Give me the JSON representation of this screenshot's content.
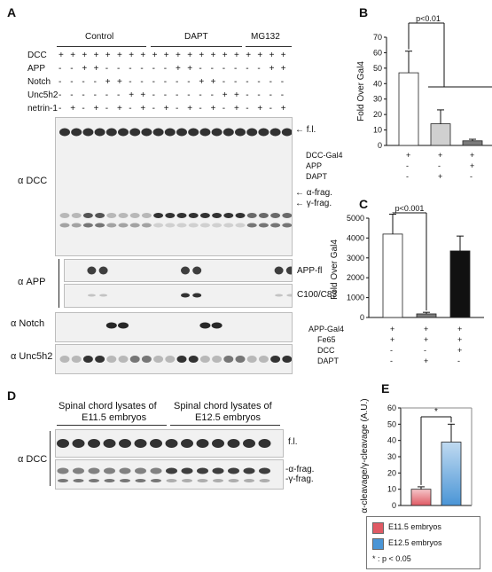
{
  "panels": {
    "A": {
      "label": "A",
      "groups": [
        "Control",
        "DAPT",
        "MG132"
      ],
      "rows": [
        {
          "name": "DCC",
          "signs": "++++++++++++++++++++++++++"
        },
        {
          "name": "APP",
          "signs": "--++------++------++"
        },
        {
          "name": "Notch",
          "signs": "----++------++------"
        },
        {
          "name": "Unc5h2",
          "signs": "------++------++----"
        },
        {
          "name": "netrin-1",
          "signs": "-+-+-+-+-+-+-+-+-+-+"
        }
      ],
      "antibodies": [
        "α DCC",
        "α APP",
        "α Notch",
        "α Unc5h2"
      ],
      "band_labels": {
        "fl": "f.l.",
        "alpha": "α-frag.",
        "gamma": "γ-frag.",
        "app_fl": "APP-fl",
        "c100": "C100/C83"
      }
    },
    "B": {
      "label": "B",
      "pvalue": "p<0.01",
      "row_labels": [
        "DCC-Gal4",
        "APP",
        "DAPT"
      ],
      "row_signs": [
        [
          "+",
          "+",
          "+"
        ],
        [
          "-",
          "-",
          "+"
        ],
        [
          "-",
          "+",
          "-"
        ]
      ]
    },
    "C": {
      "label": "C",
      "pvalue": "p<0.001",
      "row_labels": [
        "APP-Gal4",
        "Fe65",
        "DCC",
        "DAPT"
      ],
      "row_signs": [
        [
          "+",
          "+",
          "+"
        ],
        [
          "+",
          "+",
          "+"
        ],
        [
          "-",
          "-",
          "+"
        ],
        [
          "-",
          "+",
          "-"
        ]
      ]
    },
    "D": {
      "label": "D",
      "header_left_1": "Spinal chord lysates of",
      "header_left_2": "E11.5 embryos",
      "header_right_1": "Spinal chord lysates of",
      "header_right_2": "E12.5 embryos",
      "antibody": "α DCC",
      "band_fl": "f.l.",
      "band_alpha": "α-frag.",
      "band_gamma": "γ-frag."
    },
    "E": {
      "label": "E",
      "star": "*",
      "legend": [
        "E11.5 embryos",
        "E12.5 embryos"
      ],
      "footnote": "* : p < 0.05"
    }
  },
  "colors": {
    "white_bar": "#ffffff",
    "light_grey_bar": "#d0d0d0",
    "dark_grey_bar": "#7a7a7a",
    "black_bar": "#111111",
    "e115": "#e05a64",
    "e125": "#4a95d6"
  },
  "chart_data": [
    {
      "type": "bar",
      "panel": "B",
      "categories": [
        "DCC-Gal4",
        "DCC-Gal4 + DAPT",
        "DCC-Gal4 + APP"
      ],
      "values": [
        47,
        14,
        3
      ],
      "errors": [
        14,
        9,
        1
      ],
      "ylabel": "Fold Over Gal4",
      "ylim": [
        0,
        70
      ],
      "yticks": [
        0,
        10,
        20,
        30,
        40,
        50,
        60,
        70
      ]
    },
    {
      "type": "bar",
      "panel": "C",
      "categories": [
        "APP-Gal4 + Fe65",
        "APP-Gal4 + Fe65 + DAPT",
        "APP-Gal4 + Fe65 + DCC"
      ],
      "values": [
        4200,
        180,
        3350
      ],
      "errors": [
        1000,
        80,
        750
      ],
      "ylabel": "Fold Over Gal4",
      "ylim": [
        0,
        5000
      ],
      "yticks": [
        0,
        1000,
        2000,
        3000,
        4000,
        5000
      ]
    },
    {
      "type": "bar",
      "panel": "E",
      "categories": [
        "E11.5 embryos",
        "E12.5 embryos"
      ],
      "values": [
        10,
        39
      ],
      "errors": [
        1.5,
        11
      ],
      "ylabel": "α-cleavage/γ-cleavage (A.U.)",
      "ylim": [
        0,
        60
      ],
      "yticks": [
        0,
        10,
        20,
        30,
        40,
        50,
        60
      ]
    }
  ]
}
